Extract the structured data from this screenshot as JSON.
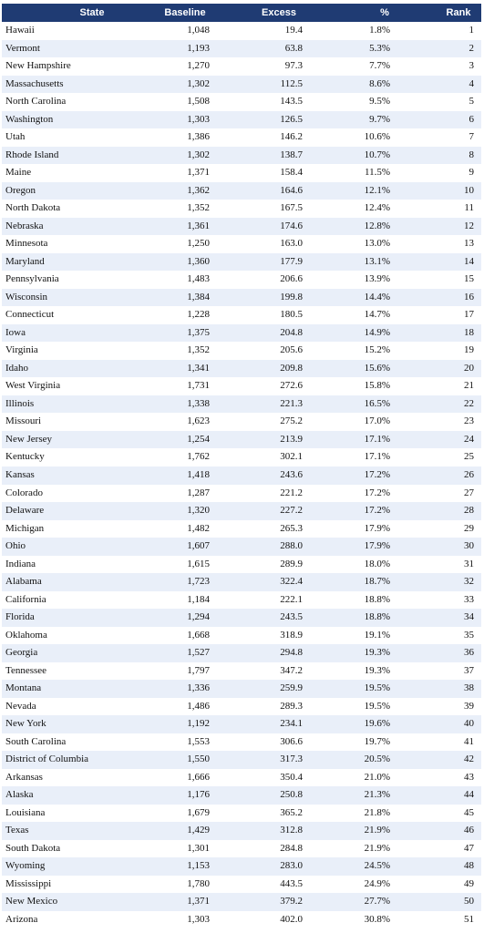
{
  "table": {
    "header": [
      "State",
      "Baseline",
      "Excess",
      "%",
      "Rank"
    ],
    "rows": [
      [
        "Hawaii",
        "1,048",
        "19.4",
        "1.8%",
        1
      ],
      [
        "Vermont",
        "1,193",
        "63.8",
        "5.3%",
        2
      ],
      [
        "New Hampshire",
        "1,270",
        "97.3",
        "7.7%",
        3
      ],
      [
        "Massachusetts",
        "1,302",
        "112.5",
        "8.6%",
        4
      ],
      [
        "North Carolina",
        "1,508",
        "143.5",
        "9.5%",
        5
      ],
      [
        "Washington",
        "1,303",
        "126.5",
        "9.7%",
        6
      ],
      [
        "Utah",
        "1,386",
        "146.2",
        "10.6%",
        7
      ],
      [
        "Rhode Island",
        "1,302",
        "138.7",
        "10.7%",
        8
      ],
      [
        "Maine",
        "1,371",
        "158.4",
        "11.5%",
        9
      ],
      [
        "Oregon",
        "1,362",
        "164.6",
        "12.1%",
        10
      ],
      [
        "North Dakota",
        "1,352",
        "167.5",
        "12.4%",
        11
      ],
      [
        "Nebraska",
        "1,361",
        "174.6",
        "12.8%",
        12
      ],
      [
        "Minnesota",
        "1,250",
        "163.0",
        "13.0%",
        13
      ],
      [
        "Maryland",
        "1,360",
        "177.9",
        "13.1%",
        14
      ],
      [
        "Pennsylvania",
        "1,483",
        "206.6",
        "13.9%",
        15
      ],
      [
        "Wisconsin",
        "1,384",
        "199.8",
        "14.4%",
        16
      ],
      [
        "Connecticut",
        "1,228",
        "180.5",
        "14.7%",
        17
      ],
      [
        "Iowa",
        "1,375",
        "204.8",
        "14.9%",
        18
      ],
      [
        "Virginia",
        "1,352",
        "205.6",
        "15.2%",
        19
      ],
      [
        "Idaho",
        "1,341",
        "209.8",
        "15.6%",
        20
      ],
      [
        "West Virginia",
        "1,731",
        "272.6",
        "15.8%",
        21
      ],
      [
        "Illinois",
        "1,338",
        "221.3",
        "16.5%",
        22
      ],
      [
        "Missouri",
        "1,623",
        "275.2",
        "17.0%",
        23
      ],
      [
        "New Jersey",
        "1,254",
        "213.9",
        "17.1%",
        24
      ],
      [
        "Kentucky",
        "1,762",
        "302.1",
        "17.1%",
        25
      ],
      [
        "Kansas",
        "1,418",
        "243.6",
        "17.2%",
        26
      ],
      [
        "Colorado",
        "1,287",
        "221.2",
        "17.2%",
        27
      ],
      [
        "Delaware",
        "1,320",
        "227.2",
        "17.2%",
        28
      ],
      [
        "Michigan",
        "1,482",
        "265.3",
        "17.9%",
        29
      ],
      [
        "Ohio",
        "1,607",
        "288.0",
        "17.9%",
        30
      ],
      [
        "Indiana",
        "1,615",
        "289.9",
        "18.0%",
        31
      ],
      [
        "Alabama",
        "1,723",
        "322.4",
        "18.7%",
        32
      ],
      [
        "California",
        "1,184",
        "222.1",
        "18.8%",
        33
      ],
      [
        "Florida",
        "1,294",
        "243.5",
        "18.8%",
        34
      ],
      [
        "Oklahoma",
        "1,668",
        "318.9",
        "19.1%",
        35
      ],
      [
        "Georgia",
        "1,527",
        "294.8",
        "19.3%",
        36
      ],
      [
        "Tennessee",
        "1,797",
        "347.2",
        "19.3%",
        37
      ],
      [
        "Montana",
        "1,336",
        "259.9",
        "19.5%",
        38
      ],
      [
        "Nevada",
        "1,486",
        "289.3",
        "19.5%",
        39
      ],
      [
        "New York",
        "1,192",
        "234.1",
        "19.6%",
        40
      ],
      [
        "South Carolina",
        "1,553",
        "306.6",
        "19.7%",
        41
      ],
      [
        "District of Columbia",
        "1,550",
        "317.3",
        "20.5%",
        42
      ],
      [
        "Arkansas",
        "1,666",
        "350.4",
        "21.0%",
        43
      ],
      [
        "Alaska",
        "1,176",
        "250.8",
        "21.3%",
        44
      ],
      [
        "Louisiana",
        "1,679",
        "365.2",
        "21.8%",
        45
      ],
      [
        "Texas",
        "1,429",
        "312.8",
        "21.9%",
        46
      ],
      [
        "South Dakota",
        "1,301",
        "284.8",
        "21.9%",
        47
      ],
      [
        "Wyoming",
        "1,153",
        "283.0",
        "24.5%",
        48
      ],
      [
        "Mississippi",
        "1,780",
        "443.5",
        "24.9%",
        49
      ],
      [
        "New Mexico",
        "1,371",
        "379.2",
        "27.7%",
        50
      ],
      [
        "Arizona",
        "1,303",
        "402.0",
        "30.8%",
        51
      ]
    ]
  }
}
